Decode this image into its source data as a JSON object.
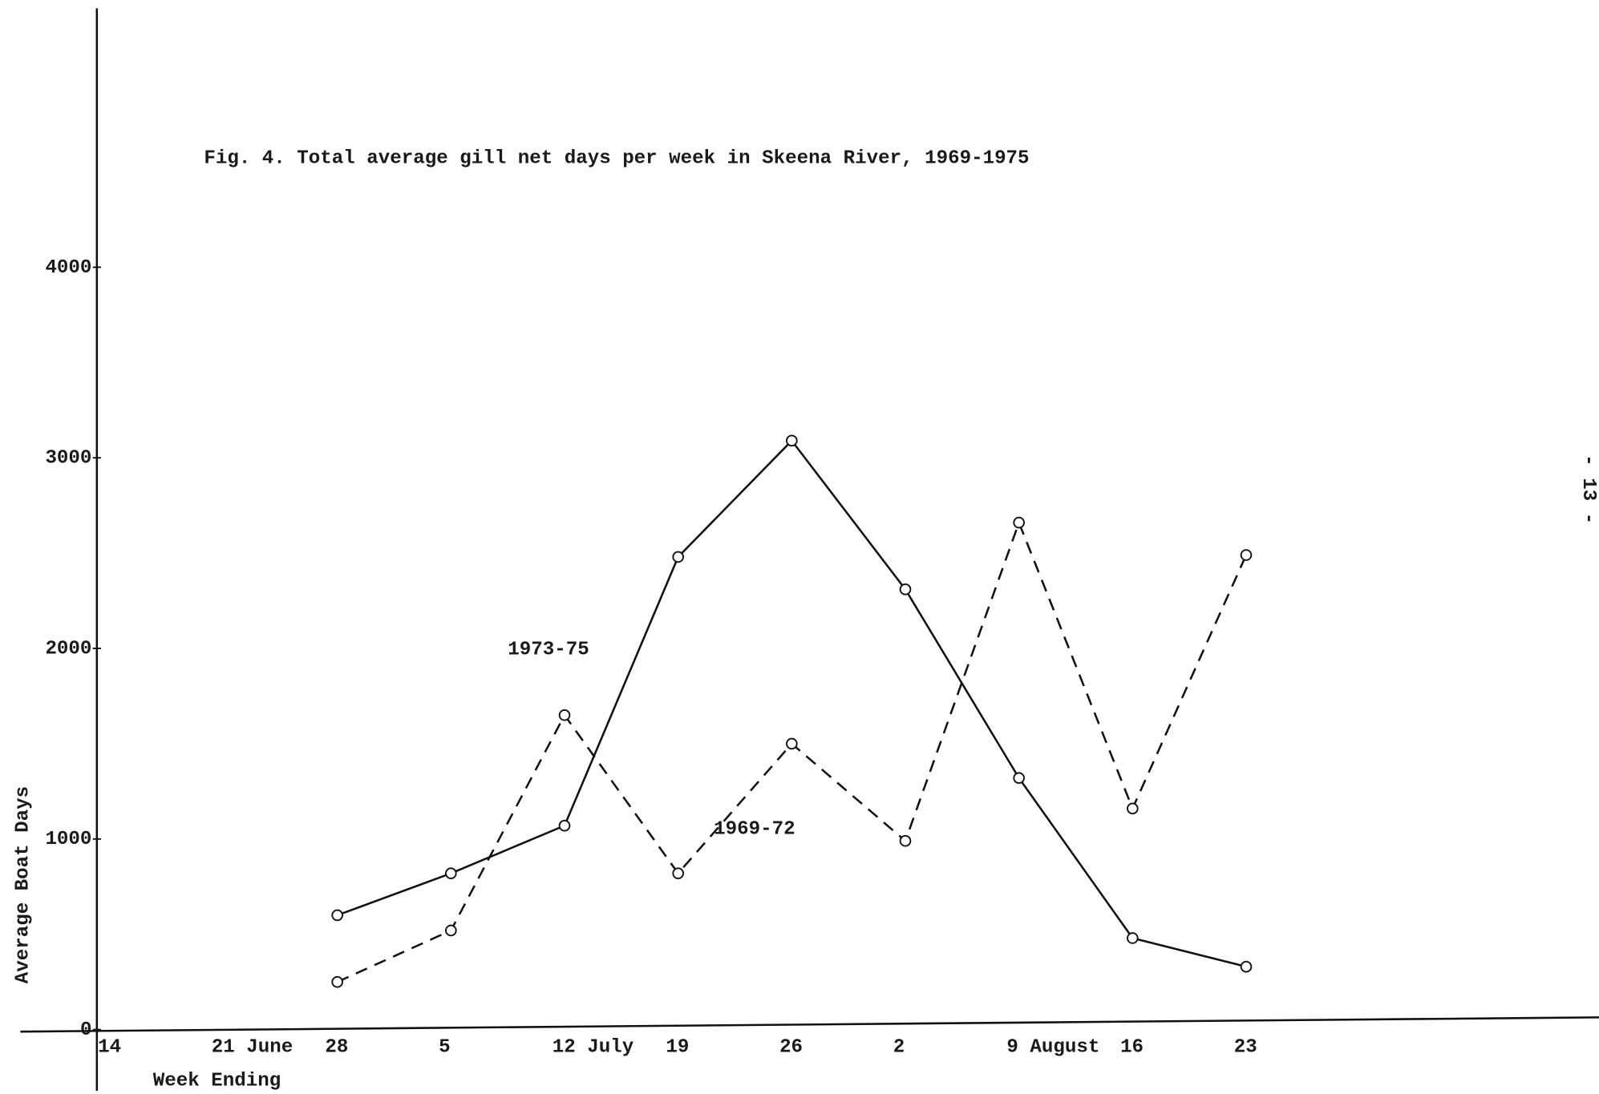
{
  "chart_data": {
    "type": "line",
    "title": "Fig. 4. Total average gill net days per week in Skeena River, 1969-1975",
    "x_label": "Week Ending",
    "y_label": "Average Boat Days",
    "page_number": "- 13 -",
    "categories": [
      "14",
      "21 June",
      "28",
      "5",
      "12 July",
      "19",
      "26",
      "2",
      "9 August",
      "16",
      "23"
    ],
    "series": [
      {
        "name": "1973-75",
        "color": "#111111",
        "dashed": false,
        "values": [
          null,
          null,
          600,
          820,
          1070,
          2480,
          3090,
          2310,
          1320,
          480,
          330
        ]
      },
      {
        "name": "1969-72",
        "color": "#111111",
        "dashed": true,
        "values": [
          null,
          null,
          250,
          520,
          1650,
          820,
          1500,
          990,
          2660,
          1160,
          2490
        ]
      }
    ],
    "ylim": [
      0,
      5350
    ],
    "yticks": [
      0,
      1000,
      2000,
      3000,
      4000
    ]
  }
}
